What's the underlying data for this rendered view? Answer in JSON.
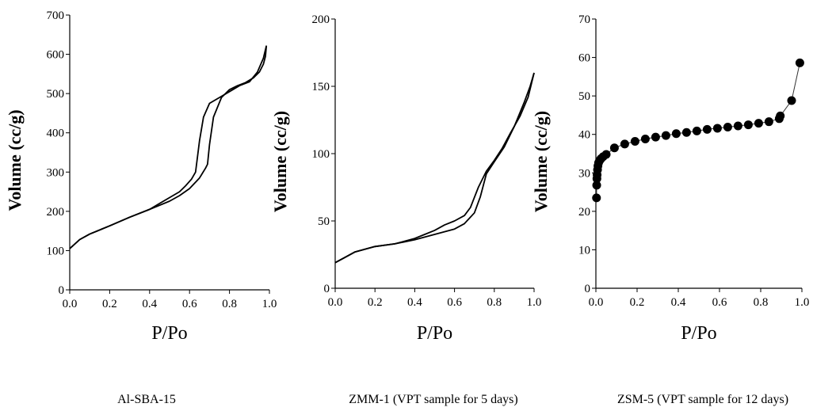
{
  "chart_data": [
    {
      "type": "line",
      "caption": "Al-SBA-15",
      "xlabel": "P/Po",
      "ylabel": "Volume (cc/g)",
      "xlim": [
        0,
        1
      ],
      "ylim": [
        0,
        700
      ],
      "xticks": [
        "0.0",
        "0.2",
        "0.4",
        "0.6",
        "0.8",
        "1.0"
      ],
      "yticks": [
        "0",
        "100",
        "200",
        "300",
        "400",
        "500",
        "600",
        "700"
      ],
      "grid": false,
      "series": [
        {
          "style": "line",
          "x": [
            0.0,
            0.05,
            0.1,
            0.2,
            0.3,
            0.4,
            0.5,
            0.55,
            0.6,
            0.65,
            0.68,
            0.69,
            0.7,
            0.72,
            0.76,
            0.8,
            0.84,
            0.88,
            0.92,
            0.95,
            0.97,
            0.98,
            0.985
          ],
          "y": [
            105,
            128,
            142,
            163,
            185,
            205,
            226,
            240,
            258,
            285,
            310,
            320,
            370,
            440,
            490,
            510,
            520,
            528,
            540,
            555,
            575,
            595,
            622
          ]
        },
        {
          "style": "line",
          "x": [
            0.985,
            0.97,
            0.94,
            0.9,
            0.85,
            0.8,
            0.75,
            0.7,
            0.67,
            0.65,
            0.63,
            0.61,
            0.58,
            0.55,
            0.5,
            0.45,
            0.4,
            0.3,
            0.2,
            0.1,
            0.05,
            0.0
          ],
          "y": [
            622,
            590,
            555,
            530,
            520,
            505,
            490,
            475,
            440,
            380,
            300,
            282,
            265,
            250,
            235,
            220,
            205,
            185,
            163,
            142,
            128,
            105
          ]
        }
      ]
    },
    {
      "type": "line",
      "caption": "ZMM-1 (VPT sample for 5 days)",
      "xlabel": "P/Po",
      "ylabel": "Volume (cc/g)",
      "xlim": [
        0,
        1
      ],
      "ylim": [
        0,
        200
      ],
      "xticks": [
        "0.0",
        "0.2",
        "0.4",
        "0.6",
        "0.8",
        "1.0"
      ],
      "yticks": [
        "0",
        "50",
        "100",
        "150",
        "200"
      ],
      "grid": false,
      "series": [
        {
          "style": "line",
          "x": [
            0.0,
            0.05,
            0.1,
            0.2,
            0.3,
            0.4,
            0.5,
            0.6,
            0.65,
            0.7,
            0.73,
            0.76,
            0.8,
            0.85,
            0.9,
            0.95,
            0.98,
            1.0
          ],
          "y": [
            19,
            23,
            27,
            31,
            33,
            36,
            40,
            44,
            48,
            56,
            68,
            85,
            94,
            105,
            120,
            138,
            150,
            160
          ]
        },
        {
          "style": "line",
          "x": [
            1.0,
            0.97,
            0.93,
            0.88,
            0.84,
            0.8,
            0.76,
            0.72,
            0.68,
            0.65,
            0.6,
            0.55,
            0.5,
            0.45,
            0.4,
            0.3,
            0.2,
            0.1,
            0.0
          ],
          "y": [
            160,
            142,
            128,
            115,
            104,
            95,
            87,
            75,
            60,
            54,
            50,
            47,
            43,
            40,
            37,
            33,
            31,
            27,
            19
          ]
        }
      ]
    },
    {
      "type": "scatter",
      "caption": "ZSM-5 (VPT sample for 12 days)",
      "xlabel": "P/Po",
      "ylabel": "Volume (cc/g)",
      "xlim": [
        0,
        1
      ],
      "ylim": [
        0,
        70
      ],
      "xticks": [
        "0.0",
        "0.2",
        "0.4",
        "0.6",
        "0.8",
        "1.0"
      ],
      "yticks": [
        "0",
        "10",
        "20",
        "30",
        "40",
        "50",
        "60",
        "70"
      ],
      "grid": false,
      "series": [
        {
          "style": "line+markers",
          "x": [
            0.003,
            0.004,
            0.005,
            0.006,
            0.008,
            0.01,
            0.013,
            0.018,
            0.025,
            0.035,
            0.05,
            0.09,
            0.14,
            0.19,
            0.24,
            0.29,
            0.34,
            0.39,
            0.44,
            0.49,
            0.54,
            0.59,
            0.64,
            0.69,
            0.74,
            0.79,
            0.84,
            0.89,
            0.895,
            0.95,
            0.99
          ],
          "y": [
            23.5,
            26.8,
            28.5,
            29.5,
            30.8,
            31.8,
            32.6,
            33.2,
            33.7,
            34.2,
            34.8,
            36.5,
            37.5,
            38.2,
            38.8,
            39.3,
            39.7,
            40.2,
            40.5,
            40.9,
            41.3,
            41.6,
            41.9,
            42.2,
            42.5,
            42.9,
            43.3,
            44.1,
            44.8,
            48.8,
            58.6
          ]
        }
      ]
    }
  ]
}
